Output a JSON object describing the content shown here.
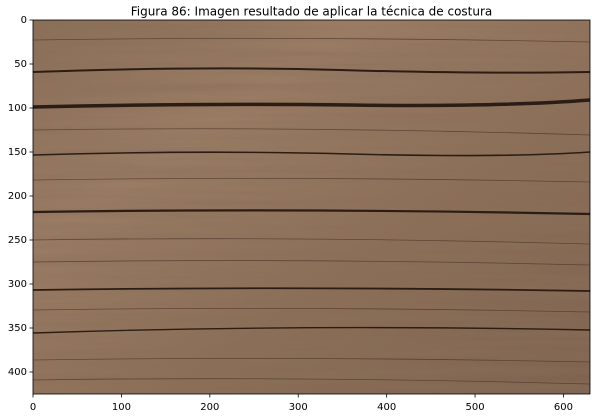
{
  "chart_data": {
    "type": "image",
    "title": "Figura 86: Imagen resultado de aplicar la técnica de costura",
    "xlim": [
      0,
      630
    ],
    "ylim": [
      425,
      0
    ],
    "xticks": [
      0,
      100,
      200,
      300,
      400,
      500,
      600
    ],
    "yticks": [
      0,
      50,
      100,
      150,
      200,
      250,
      300,
      350,
      400
    ]
  }
}
